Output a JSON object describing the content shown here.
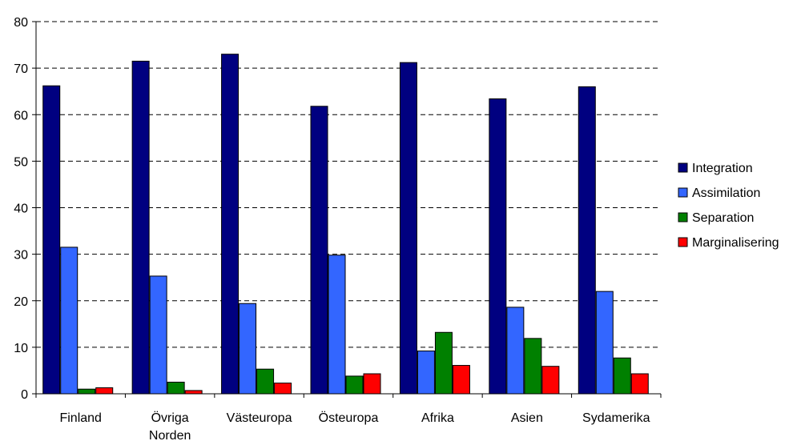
{
  "chart_data": {
    "type": "bar",
    "categories": [
      "Finland",
      "Övriga\nNorden",
      "Västeuropa",
      "Östeuropa",
      "Afrika",
      "Asien",
      "Sydamerika"
    ],
    "series": [
      {
        "name": "Integration",
        "color": "#000080",
        "values": [
          66.2,
          71.5,
          73.0,
          61.8,
          71.2,
          63.4,
          66.0
        ]
      },
      {
        "name": "Assimilation",
        "color": "#3366FF",
        "values": [
          31.5,
          25.3,
          19.4,
          29.8,
          9.2,
          18.6,
          22.0
        ]
      },
      {
        "name": "Separation",
        "color": "#008000",
        "values": [
          1.0,
          2.5,
          5.3,
          3.8,
          13.2,
          11.9,
          7.7
        ]
      },
      {
        "name": "Marginalisering",
        "color": "#FF0000",
        "values": [
          1.3,
          0.7,
          2.3,
          4.3,
          6.1,
          5.9,
          4.3
        ]
      }
    ],
    "ylim": [
      0,
      80
    ],
    "yticks": [
      0,
      10,
      20,
      30,
      40,
      50,
      60,
      70,
      80
    ],
    "grid": true,
    "legend": "right"
  }
}
